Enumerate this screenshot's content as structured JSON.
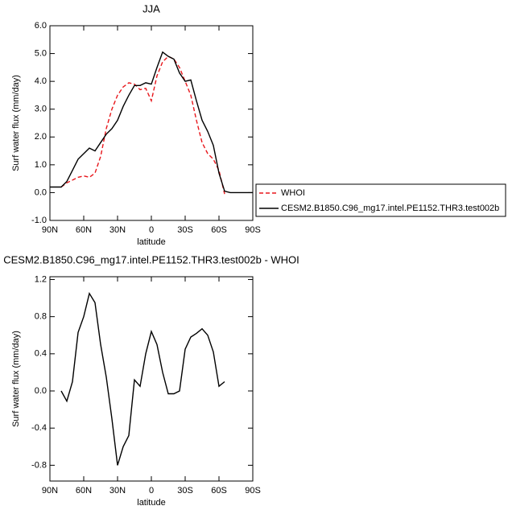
{
  "chart_data": [
    {
      "type": "line",
      "title": "JJA",
      "xlabel": "latitude",
      "ylabel": "Surf water flux (mm/day)",
      "x": [
        90,
        85,
        80,
        75,
        70,
        65,
        60,
        55,
        50,
        45,
        40,
        35,
        30,
        25,
        20,
        15,
        10,
        5,
        0,
        -5,
        -10,
        -15,
        -20,
        -25,
        -30,
        -35,
        -40,
        -45,
        -50,
        -55,
        -60,
        -65,
        -70,
        -75,
        -80,
        -85,
        -90
      ],
      "xlim": [
        90,
        -90
      ],
      "xticks": [
        {
          "value": 90,
          "label": "90N"
        },
        {
          "value": 60,
          "label": "60N"
        },
        {
          "value": 30,
          "label": "30N"
        },
        0,
        {
          "value": -30,
          "label": "30S"
        },
        {
          "value": -60,
          "label": "60S"
        },
        {
          "value": -90,
          "label": "90S"
        }
      ],
      "ylim": [
        -1,
        6
      ],
      "yticks": [
        {
          "value": -1,
          "label": "-1.0"
        },
        {
          "value": 0,
          "label": "0.0"
        },
        {
          "value": 1,
          "label": "1.0"
        },
        {
          "value": 2,
          "label": "2.0"
        },
        {
          "value": 3,
          "label": "3.0"
        },
        {
          "value": 4,
          "label": "4.0"
        },
        {
          "value": 5,
          "label": "5.0"
        },
        {
          "value": 6,
          "label": "6.0"
        }
      ],
      "legend": "right",
      "series": [
        {
          "name": "WHOI",
          "color": "#e8161b",
          "style": "dashed",
          "values": [
            null,
            null,
            0.2,
            0.35,
            0.45,
            0.55,
            0.6,
            0.55,
            0.7,
            1.3,
            2.3,
            3.0,
            3.5,
            3.8,
            3.95,
            3.9,
            3.7,
            3.75,
            3.3,
            4.2,
            4.7,
            4.9,
            4.8,
            4.5,
            4.0,
            3.5,
            2.6,
            1.8,
            1.4,
            1.2,
            0.8,
            -0.05,
            null,
            null,
            null,
            null,
            null
          ]
        },
        {
          "name": "CESM2.B1850.C96_mg17.intel.PE1152.THR3.test002b",
          "color": "#000000",
          "style": "solid",
          "values": [
            0.2,
            0.2,
            0.2,
            0.4,
            0.8,
            1.2,
            1.4,
            1.6,
            1.5,
            1.8,
            2.1,
            2.3,
            2.6,
            3.1,
            3.5,
            3.85,
            3.85,
            3.95,
            3.9,
            4.5,
            5.05,
            4.9,
            4.8,
            4.3,
            4.0,
            4.05,
            3.3,
            2.6,
            2.2,
            1.7,
            0.7,
            0.05,
            0.0,
            0.0,
            0.0,
            0.0,
            0.0
          ]
        }
      ]
    },
    {
      "type": "line",
      "title": "CESM2.B1850.C96_mg17.intel.PE1152.THR3.test002b - WHOI",
      "xlabel": "latitude",
      "ylabel": "Surf water flux (mm/day)",
      "x": [
        80,
        75,
        70,
        65,
        60,
        55,
        50,
        45,
        40,
        35,
        30,
        25,
        20,
        15,
        10,
        5,
        0,
        -5,
        -10,
        -15,
        -20,
        -25,
        -30,
        -35,
        -40,
        -45,
        -50,
        -55,
        -60,
        -65
      ],
      "xlim": [
        90,
        -90
      ],
      "xticks": [
        {
          "value": 90,
          "label": "90N"
        },
        {
          "value": 60,
          "label": "60N"
        },
        {
          "value": 30,
          "label": "30N"
        },
        0,
        {
          "value": -30,
          "label": "30S"
        },
        {
          "value": -60,
          "label": "60S"
        },
        {
          "value": -90,
          "label": "90S"
        }
      ],
      "ylim": [
        -0.97,
        1.23
      ],
      "yticks": [
        -0.8,
        -0.4,
        {
          "value": 0,
          "label": "0.0"
        },
        0.4,
        0.8,
        1.2
      ],
      "series": [
        {
          "color": "#000000",
          "style": "solid",
          "values": [
            0.0,
            -0.11,
            0.1,
            0.63,
            0.8,
            1.05,
            0.95,
            0.5,
            0.15,
            -0.3,
            -0.8,
            -0.6,
            -0.48,
            0.12,
            0.05,
            0.4,
            0.64,
            0.5,
            0.2,
            -0.03,
            -0.03,
            0.0,
            0.45,
            0.58,
            0.62,
            0.67,
            0.6,
            0.42,
            0.05,
            0.1
          ]
        }
      ]
    }
  ]
}
